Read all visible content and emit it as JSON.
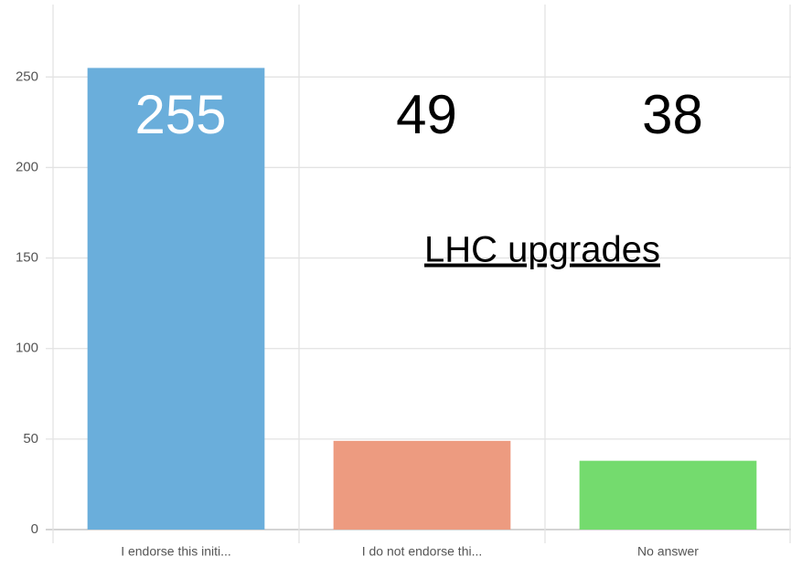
{
  "chart_data": {
    "type": "bar",
    "title": "LHC upgrades",
    "categories": [
      "I endorse this initi...",
      "I do not endorse thi...",
      "No answer"
    ],
    "values": [
      255,
      49,
      38
    ],
    "colors": [
      "#6aaedb",
      "#ed9b80",
      "#74db6e"
    ],
    "ylim": [
      0,
      290
    ],
    "yticks": [
      0,
      50,
      100,
      150,
      200,
      250
    ],
    "grid": true
  }
}
